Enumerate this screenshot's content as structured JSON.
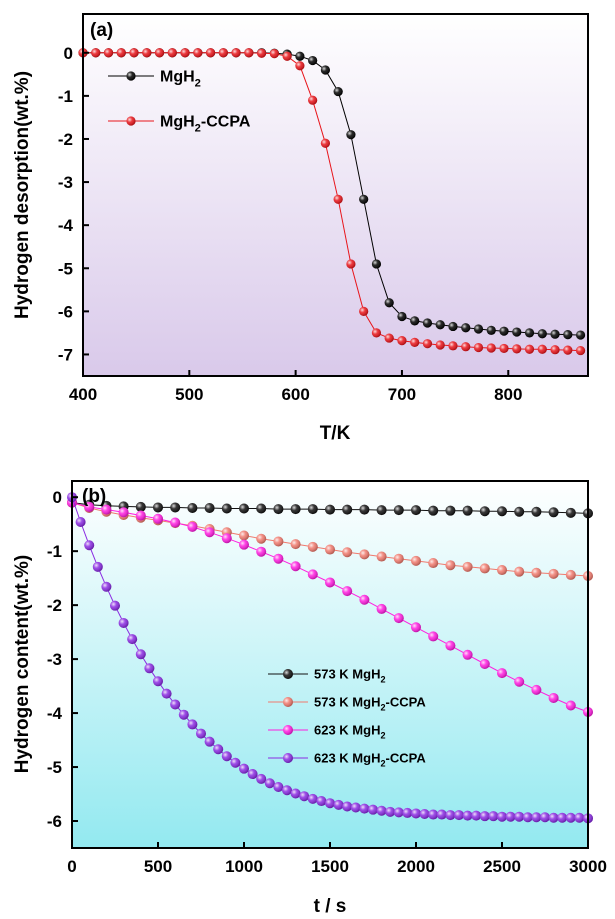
{
  "chart_data": [
    {
      "type": "line",
      "panel_label": "(a)",
      "xlabel": "T/K",
      "ylabel": "Hydrogen desorption(wt.%)",
      "xlim": [
        400,
        875
      ],
      "ylim": [
        -7.5,
        0.9
      ],
      "x_ticks": [
        "400",
        "500",
        "600",
        "700",
        "800"
      ],
      "y_ticks": [
        "0",
        "-1",
        "-2",
        "-3",
        "-4",
        "-5",
        "-6",
        "-7"
      ],
      "background": "vertical gradient white (top) to light lavender (bottom)",
      "legend_position": "top-left",
      "series": [
        {
          "name_main": "MgH",
          "name_sub": "2",
          "name_suffix": "",
          "color": "#000000",
          "x": [
            400,
            412,
            424,
            436,
            448,
            460,
            472,
            484,
            496,
            508,
            520,
            532,
            544,
            556,
            568,
            580,
            592,
            604,
            616,
            628,
            640,
            652,
            664,
            676,
            688,
            700,
            712,
            724,
            736,
            748,
            760,
            772,
            784,
            796,
            808,
            820,
            832,
            844,
            856,
            868
          ],
          "y": [
            0,
            0,
            0,
            0,
            0,
            0,
            0,
            0,
            0,
            0,
            0,
            0,
            0,
            0,
            0,
            -0.01,
            -0.03,
            -0.08,
            -0.18,
            -0.4,
            -0.9,
            -1.9,
            -3.4,
            -4.9,
            -5.8,
            -6.12,
            -6.22,
            -6.27,
            -6.31,
            -6.35,
            -6.38,
            -6.41,
            -6.44,
            -6.46,
            -6.48,
            -6.5,
            -6.52,
            -6.53,
            -6.54,
            -6.55
          ]
        },
        {
          "name_main": "MgH",
          "name_sub": "2",
          "name_suffix": "-CCPA",
          "color": "#e8141a",
          "x": [
            400,
            412,
            424,
            436,
            448,
            460,
            472,
            484,
            496,
            508,
            520,
            532,
            544,
            556,
            568,
            580,
            592,
            604,
            616,
            628,
            640,
            652,
            664,
            676,
            688,
            700,
            712,
            724,
            736,
            748,
            760,
            772,
            784,
            796,
            808,
            820,
            832,
            844,
            856,
            868
          ],
          "y": [
            0,
            0,
            0,
            0,
            0,
            0,
            0,
            0,
            0,
            0,
            0,
            0,
            0,
            0,
            -0.01,
            -0.02,
            -0.08,
            -0.3,
            -1.1,
            -2.1,
            -3.4,
            -4.9,
            -6.0,
            -6.5,
            -6.62,
            -6.68,
            -6.72,
            -6.75,
            -6.78,
            -6.8,
            -6.82,
            -6.84,
            -6.85,
            -6.86,
            -6.87,
            -6.88,
            -6.88,
            -6.89,
            -6.9,
            -6.91
          ]
        }
      ]
    },
    {
      "type": "line",
      "panel_label": "(b)",
      "xlabel": "t / s",
      "ylabel": "Hydrogen content(wt.%)",
      "xlim": [
        0,
        3000
      ],
      "ylim": [
        -6.5,
        0.3
      ],
      "x_ticks": [
        "0",
        "500",
        "1000",
        "1500",
        "2000",
        "2500",
        "3000"
      ],
      "y_ticks": [
        "0",
        "-1",
        "-2",
        "-3",
        "-4",
        "-5",
        "-6"
      ],
      "background": "vertical gradient white (top) to light cyan (bottom)",
      "legend_position": "center-left",
      "series": [
        {
          "name_prefix": "573 K MgH",
          "name_sub": "2",
          "name_suffix": "",
          "color": "#111111",
          "x": [
            0,
            100,
            200,
            300,
            400,
            500,
            600,
            700,
            800,
            900,
            1000,
            1100,
            1200,
            1300,
            1400,
            1500,
            1600,
            1700,
            1800,
            1900,
            2000,
            2100,
            2200,
            2300,
            2400,
            2500,
            2600,
            2700,
            2800,
            2900,
            3000
          ],
          "y": [
            -0.1,
            -0.14,
            -0.16,
            -0.17,
            -0.18,
            -0.19,
            -0.19,
            -0.2,
            -0.2,
            -0.21,
            -0.21,
            -0.21,
            -0.22,
            -0.22,
            -0.22,
            -0.23,
            -0.23,
            -0.23,
            -0.24,
            -0.24,
            -0.24,
            -0.25,
            -0.25,
            -0.25,
            -0.26,
            -0.26,
            -0.27,
            -0.27,
            -0.28,
            -0.29,
            -0.3
          ]
        },
        {
          "name_prefix": "573 K MgH",
          "name_sub": "2",
          "name_suffix": "-CCPA",
          "color": "#f07a6e",
          "x": [
            0,
            100,
            200,
            300,
            400,
            500,
            600,
            700,
            800,
            900,
            1000,
            1100,
            1200,
            1300,
            1400,
            1500,
            1600,
            1700,
            1800,
            1900,
            2000,
            2100,
            2200,
            2300,
            2400,
            2500,
            2600,
            2700,
            2800,
            2900,
            3000
          ],
          "y": [
            -0.1,
            -0.2,
            -0.27,
            -0.33,
            -0.38,
            -0.43,
            -0.48,
            -0.53,
            -0.59,
            -0.65,
            -0.71,
            -0.77,
            -0.82,
            -0.87,
            -0.92,
            -0.97,
            -1.02,
            -1.06,
            -1.1,
            -1.14,
            -1.18,
            -1.22,
            -1.26,
            -1.29,
            -1.32,
            -1.35,
            -1.38,
            -1.4,
            -1.42,
            -1.44,
            -1.46
          ]
        },
        {
          "name_prefix": "623 K MgH",
          "name_sub": "2",
          "name_suffix": "",
          "color": "#ff1ee0",
          "x": [
            0,
            100,
            200,
            300,
            400,
            500,
            600,
            700,
            800,
            900,
            1000,
            1100,
            1200,
            1300,
            1400,
            1500,
            1600,
            1700,
            1800,
            1900,
            2000,
            2100,
            2200,
            2300,
            2400,
            2500,
            2600,
            2700,
            2800,
            2900,
            3000
          ],
          "y": [
            -0.1,
            -0.18,
            -0.23,
            -0.28,
            -0.34,
            -0.4,
            -0.47,
            -0.55,
            -0.65,
            -0.76,
            -0.88,
            -1.01,
            -1.14,
            -1.28,
            -1.43,
            -1.58,
            -1.74,
            -1.9,
            -2.07,
            -2.24,
            -2.41,
            -2.58,
            -2.75,
            -2.92,
            -3.09,
            -3.26,
            -3.42,
            -3.57,
            -3.72,
            -3.86,
            -3.98
          ]
        },
        {
          "name_prefix": "623 K MgH",
          "name_sub": "2",
          "name_suffix": "-CCPA",
          "color": "#8a2be2",
          "x": [
            0,
            50,
            100,
            150,
            200,
            250,
            300,
            350,
            400,
            450,
            500,
            550,
            600,
            650,
            700,
            750,
            800,
            850,
            900,
            950,
            1000,
            1050,
            1100,
            1150,
            1200,
            1250,
            1300,
            1350,
            1400,
            1450,
            1500,
            1550,
            1600,
            1650,
            1700,
            1750,
            1800,
            1850,
            1900,
            1950,
            2000,
            2050,
            2100,
            2150,
            2200,
            2250,
            2300,
            2350,
            2400,
            2450,
            2500,
            2550,
            2600,
            2650,
            2700,
            2750,
            2800,
            2850,
            2900,
            2950,
            3000
          ],
          "y": [
            0,
            -0.46,
            -0.89,
            -1.29,
            -1.66,
            -2.01,
            -2.33,
            -2.63,
            -2.91,
            -3.17,
            -3.41,
            -3.64,
            -3.84,
            -4.03,
            -4.21,
            -4.38,
            -4.53,
            -4.67,
            -4.8,
            -4.92,
            -5.03,
            -5.13,
            -5.22,
            -5.3,
            -5.37,
            -5.43,
            -5.49,
            -5.54,
            -5.59,
            -5.63,
            -5.67,
            -5.7,
            -5.73,
            -5.75,
            -5.77,
            -5.79,
            -5.81,
            -5.83,
            -5.84,
            -5.85,
            -5.86,
            -5.87,
            -5.88,
            -5.88,
            -5.89,
            -5.89,
            -5.9,
            -5.9,
            -5.91,
            -5.91,
            -5.92,
            -5.92,
            -5.92,
            -5.93,
            -5.93,
            -5.93,
            -5.94,
            -5.94,
            -5.94,
            -5.94,
            -5.95
          ]
        }
      ]
    }
  ]
}
